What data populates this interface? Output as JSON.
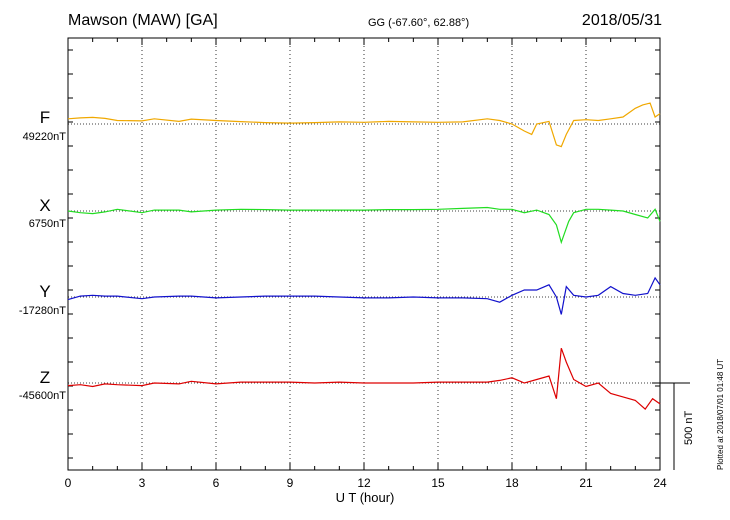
{
  "header": {
    "station": "Mawson (MAW)  [GA]",
    "coords": "GG (-67.60°,  62.88°)",
    "date": "2018/05/31"
  },
  "plotted_note": "Plotted at 2018/07/01 01:48 UT",
  "scale_label": "500 nT",
  "chart_data": {
    "type": "line",
    "xlabel": "U T (hour)",
    "xlim": [
      0,
      24
    ],
    "xticks": [
      "0",
      "3",
      "6",
      "9",
      "12",
      "15",
      "18",
      "21",
      "24"
    ],
    "grid": "dotted vertical every 3 h",
    "scale_nT": 500,
    "series": [
      {
        "name": "F",
        "baseline_label": "49220nT",
        "color": "#f0a800",
        "points": [
          [
            0,
            30
          ],
          [
            0.5,
            35
          ],
          [
            1,
            38
          ],
          [
            1.5,
            32
          ],
          [
            2,
            20
          ],
          [
            3,
            18
          ],
          [
            3.5,
            30
          ],
          [
            4.5,
            15
          ],
          [
            5,
            28
          ],
          [
            6,
            20
          ],
          [
            7,
            14
          ],
          [
            8,
            8
          ],
          [
            9,
            5
          ],
          [
            10,
            8
          ],
          [
            11,
            12
          ],
          [
            12,
            10
          ],
          [
            13,
            15
          ],
          [
            14,
            12
          ],
          [
            15,
            10
          ],
          [
            16,
            12
          ],
          [
            17,
            30
          ],
          [
            17.5,
            20
          ],
          [
            18,
            0
          ],
          [
            18.5,
            -40
          ],
          [
            18.8,
            -60
          ],
          [
            19,
            0
          ],
          [
            19.5,
            15
          ],
          [
            19.8,
            -120
          ],
          [
            20,
            -130
          ],
          [
            20.2,
            -60
          ],
          [
            20.5,
            20
          ],
          [
            21,
            25
          ],
          [
            21.5,
            20
          ],
          [
            22,
            30
          ],
          [
            22.5,
            40
          ],
          [
            23,
            90
          ],
          [
            23.3,
            110
          ],
          [
            23.6,
            120
          ],
          [
            23.8,
            40
          ],
          [
            24,
            60
          ]
        ]
      },
      {
        "name": "X",
        "baseline_label": "6750nT",
        "color": "#22dd22",
        "points": [
          [
            0,
            0
          ],
          [
            0.5,
            -10
          ],
          [
            1,
            -15
          ],
          [
            1.5,
            -5
          ],
          [
            2,
            10
          ],
          [
            3,
            -10
          ],
          [
            3.5,
            5
          ],
          [
            4.5,
            5
          ],
          [
            5,
            -5
          ],
          [
            6,
            5
          ],
          [
            7,
            10
          ],
          [
            8,
            8
          ],
          [
            9,
            5
          ],
          [
            10,
            5
          ],
          [
            11,
            5
          ],
          [
            12,
            5
          ],
          [
            13,
            8
          ],
          [
            14,
            8
          ],
          [
            15,
            10
          ],
          [
            16,
            15
          ],
          [
            17,
            20
          ],
          [
            17.5,
            10
          ],
          [
            18,
            10
          ],
          [
            18.5,
            -10
          ],
          [
            19,
            5
          ],
          [
            19.5,
            -20
          ],
          [
            19.8,
            -80
          ],
          [
            20,
            -180
          ],
          [
            20.3,
            -60
          ],
          [
            20.5,
            -10
          ],
          [
            21,
            10
          ],
          [
            21.5,
            10
          ],
          [
            22,
            5
          ],
          [
            22.5,
            0
          ],
          [
            23,
            -20
          ],
          [
            23.5,
            -40
          ],
          [
            23.8,
            10
          ],
          [
            24,
            -60
          ]
        ]
      },
      {
        "name": "Y",
        "baseline_label": "-17280nT",
        "color": "#1111cc",
        "points": [
          [
            0,
            -15
          ],
          [
            0.5,
            5
          ],
          [
            1,
            10
          ],
          [
            1.5,
            5
          ],
          [
            2,
            5
          ],
          [
            3,
            -10
          ],
          [
            3.5,
            0
          ],
          [
            4.5,
            5
          ],
          [
            5,
            5
          ],
          [
            6,
            -5
          ],
          [
            7,
            0
          ],
          [
            8,
            5
          ],
          [
            9,
            5
          ],
          [
            10,
            5
          ],
          [
            11,
            0
          ],
          [
            12,
            -5
          ],
          [
            13,
            -5
          ],
          [
            14,
            0
          ],
          [
            15,
            -5
          ],
          [
            16,
            -5
          ],
          [
            17,
            -10
          ],
          [
            17.5,
            -30
          ],
          [
            18,
            10
          ],
          [
            18.5,
            40
          ],
          [
            19,
            40
          ],
          [
            19.5,
            70
          ],
          [
            19.8,
            0
          ],
          [
            20,
            -100
          ],
          [
            20.2,
            60
          ],
          [
            20.5,
            10
          ],
          [
            21,
            0
          ],
          [
            21.5,
            10
          ],
          [
            22,
            60
          ],
          [
            22.5,
            20
          ],
          [
            23,
            10
          ],
          [
            23.5,
            20
          ],
          [
            23.8,
            110
          ],
          [
            24,
            70
          ]
        ]
      },
      {
        "name": "Z",
        "baseline_label": "-45600nT",
        "color": "#dd0000",
        "points": [
          [
            0,
            -15
          ],
          [
            0.5,
            -10
          ],
          [
            1,
            -20
          ],
          [
            1.5,
            -5
          ],
          [
            2,
            -10
          ],
          [
            3,
            -15
          ],
          [
            3.5,
            0
          ],
          [
            4.5,
            -5
          ],
          [
            5,
            10
          ],
          [
            6,
            -5
          ],
          [
            7,
            5
          ],
          [
            8,
            5
          ],
          [
            9,
            5
          ],
          [
            10,
            0
          ],
          [
            11,
            5
          ],
          [
            12,
            0
          ],
          [
            13,
            0
          ],
          [
            14,
            0
          ],
          [
            15,
            5
          ],
          [
            16,
            5
          ],
          [
            17,
            5
          ],
          [
            17.5,
            15
          ],
          [
            18,
            30
          ],
          [
            18.5,
            0
          ],
          [
            19,
            20
          ],
          [
            19.5,
            40
          ],
          [
            19.8,
            -90
          ],
          [
            20,
            200
          ],
          [
            20.2,
            120
          ],
          [
            20.5,
            20
          ],
          [
            21,
            -20
          ],
          [
            21.5,
            0
          ],
          [
            22,
            -60
          ],
          [
            22.5,
            -80
          ],
          [
            23,
            -100
          ],
          [
            23.4,
            -150
          ],
          [
            23.7,
            -90
          ],
          [
            24,
            -120
          ]
        ]
      }
    ]
  }
}
